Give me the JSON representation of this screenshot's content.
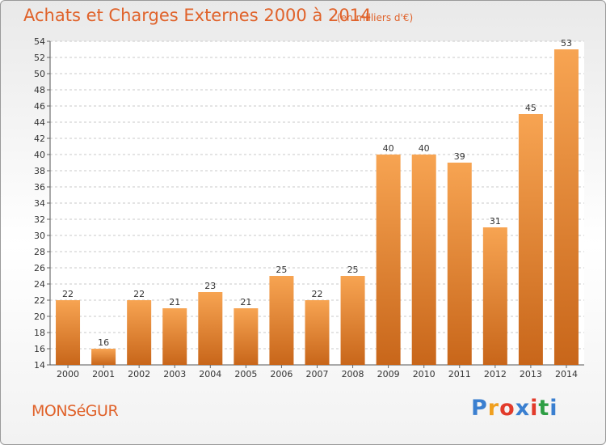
{
  "header": {
    "title": "Achats et Charges Externes 2000 à 2014",
    "subtitle": "(en milliers d'€)"
  },
  "footer": {
    "place": "MONSéGUR",
    "brand": "Proxiti",
    "brand_colors": [
      "#3a7fd0",
      "#f0a020",
      "#e23b2b",
      "#3a7fd0",
      "#e23b2b",
      "#2e9e44",
      "#3a7fd0"
    ]
  },
  "colors": {
    "bar_light": "#f7a452",
    "bar_dark": "#c8661a",
    "grid": "#c9c9c9",
    "axis_text": "#333333"
  },
  "chart_data": {
    "type": "bar",
    "title": "Achats et Charges Externes 2000 à 2014",
    "subtitle": "(en milliers d'€)",
    "categories": [
      "2000",
      "2001",
      "2002",
      "2003",
      "2004",
      "2005",
      "2006",
      "2007",
      "2008",
      "2009",
      "2010",
      "2011",
      "2012",
      "2013",
      "2014"
    ],
    "values": [
      22,
      16,
      22,
      21,
      23,
      21,
      25,
      22,
      25,
      40,
      40,
      39,
      31,
      45,
      53
    ],
    "data_labels": [
      "22",
      "16",
      "22",
      "21",
      "23",
      "21",
      "25",
      "22",
      "25",
      "40",
      "40",
      "39",
      "31",
      "45",
      "53"
    ],
    "ylim": [
      14,
      54
    ],
    "yticks": [
      14,
      16,
      18,
      20,
      22,
      24,
      26,
      28,
      30,
      32,
      34,
      36,
      38,
      40,
      42,
      44,
      46,
      48,
      50,
      52,
      54
    ],
    "grid": true
  }
}
